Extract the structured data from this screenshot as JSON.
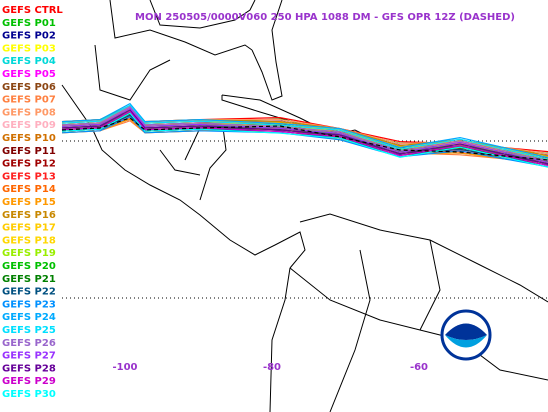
{
  "title": "MON 250505/0000V060  250 HPA 1088 DM - GFS OPR 12Z (DASHED)",
  "members": [
    {
      "name": "GEFS CTRL",
      "color": "#ff0000"
    },
    {
      "name": "GEFS P01",
      "color": "#00c000"
    },
    {
      "name": "GEFS P02",
      "color": "#000090"
    },
    {
      "name": "GEFS P03",
      "color": "#ffff00"
    },
    {
      "name": "GEFS P04",
      "color": "#00d8d8"
    },
    {
      "name": "GEFS P05",
      "color": "#ff00ff"
    },
    {
      "name": "GEFS P06",
      "color": "#8b4513"
    },
    {
      "name": "GEFS P07",
      "color": "#ff8040"
    },
    {
      "name": "GEFS P08",
      "color": "#ff9966"
    },
    {
      "name": "GEFS P09",
      "color": "#ffb0c0"
    },
    {
      "name": "GEFS P10",
      "color": "#d07000"
    },
    {
      "name": "GEFS P11",
      "color": "#800000"
    },
    {
      "name": "GEFS P12",
      "color": "#a00000"
    },
    {
      "name": "GEFS P13",
      "color": "#ff2020"
    },
    {
      "name": "GEFS P14",
      "color": "#ff6600"
    },
    {
      "name": "GEFS P15",
      "color": "#ff9900"
    },
    {
      "name": "GEFS P16",
      "color": "#c88800"
    },
    {
      "name": "GEFS P17",
      "color": "#ffcc00"
    },
    {
      "name": "GEFS P18",
      "color": "#ffd700"
    },
    {
      "name": "GEFS P19",
      "color": "#99ee00"
    },
    {
      "name": "GEFS P20",
      "color": "#00c000"
    },
    {
      "name": "GEFS P21",
      "color": "#008000"
    },
    {
      "name": "GEFS P22",
      "color": "#005080"
    },
    {
      "name": "GEFS P23",
      "color": "#0090ff"
    },
    {
      "name": "GEFS P24",
      "color": "#00aaff"
    },
    {
      "name": "GEFS P25",
      "color": "#00e0ff"
    },
    {
      "name": "GEFS P26",
      "color": "#9966cc"
    },
    {
      "name": "GEFS P27",
      "color": "#9933ff"
    },
    {
      "name": "GEFS P28",
      "color": "#660099"
    },
    {
      "name": "GEFS P29",
      "color": "#cc00cc"
    },
    {
      "name": "GEFS P30",
      "color": "#00ffff"
    }
  ],
  "lon_labels": [
    -100,
    -80,
    -60
  ]
}
